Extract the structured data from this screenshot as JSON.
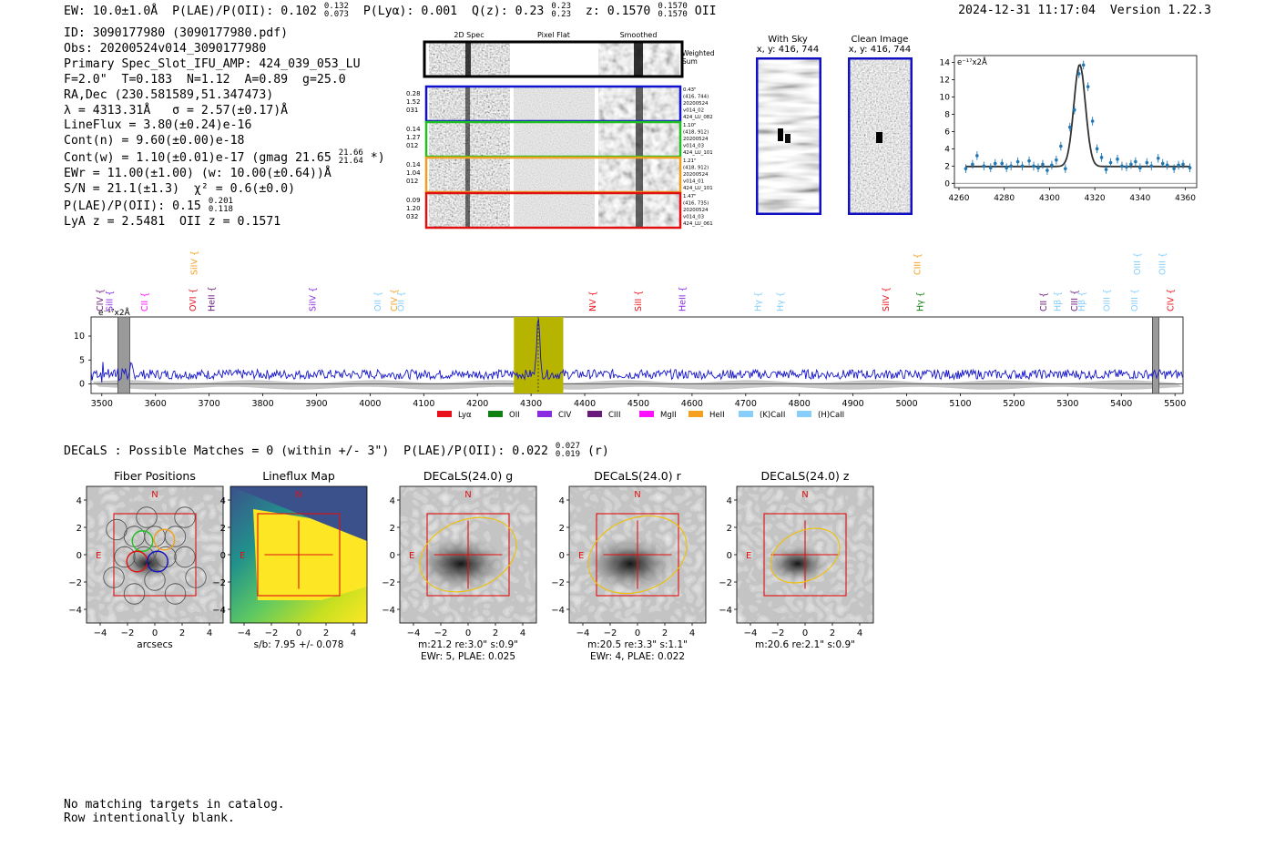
{
  "header": {
    "ew_label": "EW: 10.0±1.0Å",
    "plae_label": "P(LAE)/P(OII):",
    "plae_value": "0.102",
    "plae_hi": "0.132",
    "plae_lo": "0.073",
    "plya": "P(Lyα): 0.001",
    "qz_label": "Q(z): 0.23",
    "qz_hi": "0.23",
    "qz_lo": "0.23",
    "z_label": "z: 0.1570",
    "z_hi": "0.1570",
    "z_lo": "0.1570",
    "z_line": "OII",
    "timestamp": "2024-12-31 11:17:04",
    "version": "Version 1.22.3"
  },
  "info": {
    "id": "ID: 3090177980 (3090177980.pdf)",
    "obs": "Obs: 20200524v014_3090177980",
    "primary": "Primary Spec_Slot_IFU_AMP: 424_039_053_LU",
    "fwhm": "F=2.0\"  T=0.183  N=1.12  A=0.89  g=25.0",
    "radec": "RA,Dec (230.581589,51.347473)",
    "lambda": "λ = 4313.31Å   σ = 2.57(±0.17)Å",
    "lineflux": "LineFlux = 3.80(±0.24)e-16",
    "contn": "Cont(n) = 9.60(±0.00)e-18",
    "contw_a": "Cont(w) = 1.10(±0.01)e-17 (gmag 21.65",
    "contw_hi": "21.66",
    "contw_lo": "21.64",
    "contw_b": " *)",
    "ewr": "EWr = 11.00(±1.00) (w: 10.00(±0.64))Å",
    "sn": "S/N = 21.1(±1.3)  χ² = 0.6(±0.0)",
    "plae_a": "P(LAE)/P(OII): 0.15",
    "plae_hi": "0.201",
    "plae_lo": "0.118",
    "lya": "LyA z = 2.5481  OII z = 0.1571"
  },
  "cutouts": {
    "col_2d": "2D Spec",
    "col_flat": "Pixel Flat",
    "col_smooth": "Smoothed",
    "weighted": "Weighted",
    "sum": "Sum",
    "rows": [
      {
        "left": [
          "0.28",
          "1.52",
          "031"
        ],
        "right": [
          "0.43\"",
          "(416, 744)",
          "20200524",
          "v014_02",
          "424_LU_082"
        ],
        "color": "#1010d0"
      },
      {
        "left": [
          "0.14",
          "1.27",
          "012"
        ],
        "right": [
          "1.10\"",
          "(418, 912)",
          "20200524",
          "v014_03",
          "424_LU_101"
        ],
        "color": "#20c020"
      },
      {
        "left": [
          "0.14",
          "1.04",
          "012"
        ],
        "right": [
          "1.21\"",
          "(418, 912)",
          "20200524",
          "v014_01",
          "424_LU_101"
        ],
        "color": "#f0a020"
      },
      {
        "left": [
          "0.09",
          "1.20",
          "032"
        ],
        "right": [
          "1.47\"",
          "(416, 735)",
          "20200524",
          "v014_03",
          "424_LU_061"
        ],
        "color": "#e01010"
      }
    ]
  },
  "sky": {
    "with_title": "With Sky",
    "with_xy": "x, y: 416, 744",
    "clean_title": "Clean Image",
    "clean_xy": "x, y: 416, 744"
  },
  "zoom_chart": {
    "ylabel": "e⁻¹⁷x2Å",
    "xticks": [
      "4260",
      "4280",
      "4300",
      "4320",
      "4340",
      "4360"
    ],
    "yticks": [
      "0",
      "2",
      "4",
      "6",
      "8",
      "10",
      "12",
      "14"
    ]
  },
  "full_spectrum": {
    "ylabel": "e⁻¹⁷x2Å",
    "xticks": [
      "3500",
      "3600",
      "3700",
      "3800",
      "3900",
      "4000",
      "4100",
      "4200",
      "4300",
      "4400",
      "4500",
      "4600",
      "4700",
      "4800",
      "4900",
      "5000",
      "5100",
      "5200",
      "5300",
      "5400",
      "5500"
    ],
    "yticks": [
      "0",
      "5",
      "10"
    ],
    "legend": [
      {
        "label": "Lyα",
        "color": "#e8101a"
      },
      {
        "label": "OII",
        "color": "#108010"
      },
      {
        "label": "CIV",
        "color": "#8a2be2"
      },
      {
        "label": "CIII",
        "color": "#6a1a7a"
      },
      {
        "label": "MgII",
        "color": "#ff10ff"
      },
      {
        "label": "HeII",
        "color": "#f5a020"
      },
      {
        "label": "(K)CaII",
        "color": "#87cefa"
      },
      {
        "label": "(H)CaII",
        "color": "#87cefa"
      }
    ],
    "lines": [
      {
        "name": "CIV",
        "wave": 3497,
        "color": "#6a1a7a",
        "row": 0
      },
      {
        "name": "SiII",
        "wave": 3515,
        "color": "#8a2be2",
        "row": 0
      },
      {
        "name": "CII",
        "wave": 3580,
        "color": "#ff10ff",
        "row": 0
      },
      {
        "name": "SiIV",
        "wave": 3673,
        "color": "#f5a020",
        "row": 2
      },
      {
        "name": "OVI",
        "wave": 3670,
        "color": "#e8101a",
        "row": 0
      },
      {
        "name": "HeII",
        "wave": 3705,
        "color": "#6a1a7a",
        "row": 0
      },
      {
        "name": "SiIV",
        "wave": 3893,
        "color": "#8a2be2",
        "row": 0
      },
      {
        "name": "OII",
        "wave": 4015,
        "color": "#87cefa",
        "row": 0
      },
      {
        "name": "CIV",
        "wave": 4045,
        "color": "#f5a020",
        "row": 0
      },
      {
        "name": "OII",
        "wave": 4058,
        "color": "#87cefa",
        "row": 0
      },
      {
        "name": "NV",
        "wave": 4415,
        "color": "#e8101a",
        "row": 0
      },
      {
        "name": "SiII",
        "wave": 4500,
        "color": "#e8101a",
        "row": 0
      },
      {
        "name": "HeII",
        "wave": 4582,
        "color": "#8a2be2",
        "row": 0
      },
      {
        "name": "Hγ",
        "wave": 4723,
        "color": "#87cefa",
        "row": 0
      },
      {
        "name": "Hγ",
        "wave": 4765,
        "color": "#87cefa",
        "row": 0
      },
      {
        "name": "SiIV",
        "wave": 4962,
        "color": "#e8101a",
        "row": 0
      },
      {
        "name": "CIII",
        "wave": 5020,
        "color": "#f5a020",
        "row": 2
      },
      {
        "name": "Hγ",
        "wave": 5025,
        "color": "#108010",
        "row": 0
      },
      {
        "name": "CII",
        "wave": 5255,
        "color": "#6a1a7a",
        "row": 0
      },
      {
        "name": "Hβ",
        "wave": 5282,
        "color": "#87cefa",
        "row": 0
      },
      {
        "name": "CIII",
        "wave": 5313,
        "color": "#6a1a7a",
        "row": 0
      },
      {
        "name": "Hβ",
        "wave": 5327,
        "color": "#87cefa",
        "row": 0
      },
      {
        "name": "OIII",
        "wave": 5373,
        "color": "#87cefa",
        "row": 0
      },
      {
        "name": "OIII",
        "wave": 5425,
        "color": "#87cefa",
        "row": 0
      },
      {
        "name": "OIII",
        "wave": 5430,
        "color": "#87cefa",
        "row": 2
      },
      {
        "name": "OIII",
        "wave": 5477,
        "color": "#87cefa",
        "row": 2
      },
      {
        "name": "CIV",
        "wave": 5492,
        "color": "#e8101a",
        "row": 0
      }
    ]
  },
  "decals": {
    "summary_a": "DECaLS : Possible Matches = 0 (within +/- 3\")  P(LAE)/P(OII): 0.022",
    "summary_hi": "0.027",
    "summary_lo": "0.019",
    "summary_b": " (r)",
    "panels": [
      {
        "title": "Fiber Positions",
        "cap1": "arcsecs",
        "cap2": ""
      },
      {
        "title": "Lineflux Map",
        "cap1": "s/b: 7.95 +/- 0.078",
        "cap2": ""
      },
      {
        "title": "DECaLS(24.0) g",
        "cap1": "m:21.2  re:3.0\"  s:0.9\"",
        "cap2": "EWr: 5, PLAE: 0.025"
      },
      {
        "title": "DECaLS(24.0) r",
        "cap1": "m:20.5  re:3.3\"  s:1.1\"",
        "cap2": "EWr: 4, PLAE: 0.022"
      },
      {
        "title": "DECaLS(24.0) z",
        "cap1": "m:20.6  re:2.1\"  s:0.9\"",
        "cap2": ""
      }
    ],
    "ticks": [
      "−4",
      "−2",
      "0",
      "2",
      "4"
    ],
    "compass_n": "N",
    "compass_e": "E"
  },
  "catalog_note": {
    "line1": "No matching targets in catalog.",
    "line2": "Row intentionally blank."
  },
  "chart_data": [
    {
      "type": "scatter",
      "title": "",
      "xlabel": "",
      "ylabel": "e-17x2Å",
      "xlim": [
        4258,
        4365
      ],
      "ylim": [
        -0.5,
        14.8
      ],
      "series": [
        {
          "name": "data",
          "x": [
            4263,
            4266,
            4268,
            4271,
            4274,
            4276,
            4279,
            4281,
            4283,
            4286,
            4288,
            4291,
            4293,
            4295,
            4297,
            4299,
            4301,
            4303,
            4305,
            4307,
            4309,
            4311,
            4313,
            4315,
            4317,
            4319,
            4321,
            4323,
            4325,
            4327,
            4330,
            4332,
            4334,
            4336,
            4338,
            4340,
            4343,
            4345,
            4348,
            4350,
            4352,
            4355,
            4357,
            4359,
            4362
          ],
          "y": [
            1.7,
            2.2,
            3.2,
            2.0,
            1.8,
            2.3,
            2.3,
            1.8,
            2.0,
            2.5,
            2.0,
            2.6,
            2.0,
            1.8,
            2.2,
            1.5,
            2.1,
            2.7,
            4.3,
            1.7,
            6.5,
            8.5,
            12.7,
            13.7,
            11.2,
            7.2,
            4.0,
            3.0,
            1.6,
            2.4,
            2.8,
            2.0,
            1.9,
            2.2,
            2.5,
            1.8,
            2.4,
            2.0,
            2.9,
            2.3,
            2.1,
            1.7,
            2.1,
            2.2,
            1.8
          ],
          "yerr": 0.6
        },
        {
          "name": "gaussian fit",
          "center": 4313.31,
          "sigma": 2.57,
          "amplitude": 11.8,
          "continuum": 1.95
        }
      ]
    },
    {
      "type": "line",
      "title": "",
      "xlabel": "",
      "ylabel": "e-17x2Å",
      "xlim": [
        3480,
        5515
      ],
      "ylim": [
        -2,
        14
      ],
      "continuum": 2.0,
      "noise": 1.0,
      "emission": {
        "wave": 4313.3,
        "sigma": 2.6,
        "peak": 13.0
      },
      "highlight": [
        4268,
        4360
      ],
      "masked": [
        [
          3530,
          3552
        ],
        [
          5458,
          5470
        ]
      ]
    }
  ]
}
